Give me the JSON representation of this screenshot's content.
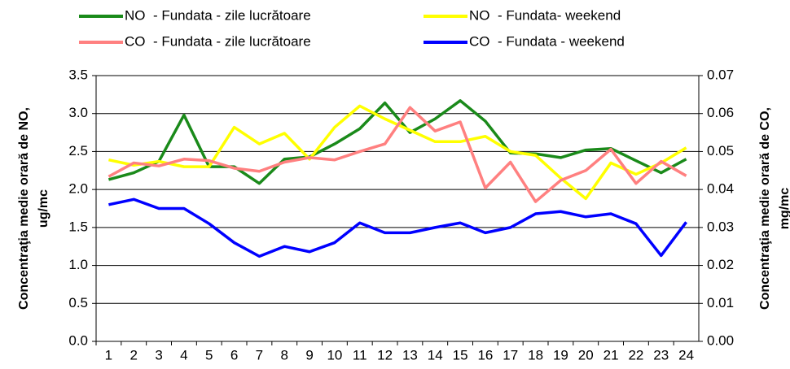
{
  "chart_data": {
    "type": "line",
    "categories": [
      "1",
      "2",
      "3",
      "4",
      "5",
      "6",
      "7",
      "8",
      "9",
      "10",
      "11",
      "12",
      "13",
      "14",
      "15",
      "16",
      "17",
      "18",
      "19",
      "20",
      "21",
      "22",
      "23",
      "24"
    ],
    "ylabel": [
      "Concentraţia medie orară de NO,",
      "ug/mc"
    ],
    "y2label": [
      "Concentraţia medie orară de CO,",
      "mg/mc"
    ],
    "ylim": [
      0,
      3.5
    ],
    "yticks": [
      {
        "value": 0,
        "label": "0.0"
      },
      {
        "value": 0.5,
        "label": "0.5"
      },
      {
        "value": 1,
        "label": "1.0"
      },
      {
        "value": 1.5,
        "label": "1.5"
      },
      {
        "value": 2,
        "label": "2.0"
      },
      {
        "value": 2.5,
        "label": "2.5"
      },
      {
        "value": 3,
        "label": "3.0"
      },
      {
        "value": 3.5,
        "label": "3.5"
      }
    ],
    "y2lim": [
      0,
      0.07
    ],
    "y2ticks": [
      {
        "value": 0,
        "label": "0.00"
      },
      {
        "value": 0.01,
        "label": "0.01"
      },
      {
        "value": 0.02,
        "label": "0.02"
      },
      {
        "value": 0.03,
        "label": "0.03"
      },
      {
        "value": 0.04,
        "label": "0.04"
      },
      {
        "value": 0.05,
        "label": "0.05"
      },
      {
        "value": 0.06,
        "label": "0.06"
      },
      {
        "value": 0.07,
        "label": "0.07"
      }
    ],
    "grid": true,
    "legend": "top",
    "series": [
      {
        "name": "NO  - Fundata - zile lucrătoare",
        "color": "#1a8a1a",
        "axis": "y",
        "values": [
          2.13,
          2.22,
          2.37,
          2.98,
          2.3,
          2.3,
          2.08,
          2.4,
          2.43,
          2.6,
          2.8,
          3.14,
          2.75,
          2.93,
          3.17,
          2.9,
          2.48,
          2.47,
          2.42,
          2.52,
          2.54,
          2.38,
          2.22,
          2.4
        ]
      },
      {
        "name": "NO  - Fundata- weekend",
        "color": "#ffff00",
        "axis": "y",
        "values": [
          2.39,
          2.32,
          2.37,
          2.3,
          2.3,
          2.82,
          2.6,
          2.74,
          2.4,
          2.82,
          3.1,
          2.93,
          2.78,
          2.63,
          2.63,
          2.7,
          2.5,
          2.45,
          2.15,
          1.88,
          2.35,
          2.2,
          2.35,
          2.55
        ]
      },
      {
        "name": "CO  - Fundata - zile lucrătoare",
        "color": "#ff8080",
        "axis": "y2",
        "values": [
          0.0434,
          0.047,
          0.0462,
          0.048,
          0.0476,
          0.0456,
          0.0448,
          0.0472,
          0.0484,
          0.0478,
          0.05,
          0.052,
          0.0616,
          0.0554,
          0.0578,
          0.0404,
          0.0472,
          0.0368,
          0.0424,
          0.045,
          0.0506,
          0.0416,
          0.0474,
          0.0436
        ]
      },
      {
        "name": "CO  - Fundata - weekend",
        "color": "#0000ff",
        "axis": "y2",
        "values": [
          0.036,
          0.0374,
          0.035,
          0.035,
          0.031,
          0.026,
          0.0224,
          0.025,
          0.0236,
          0.026,
          0.0312,
          0.0286,
          0.0286,
          0.03,
          0.0312,
          0.0286,
          0.03,
          0.0336,
          0.0342,
          0.0328,
          0.0336,
          0.031,
          0.0226,
          0.0314
        ]
      }
    ]
  }
}
